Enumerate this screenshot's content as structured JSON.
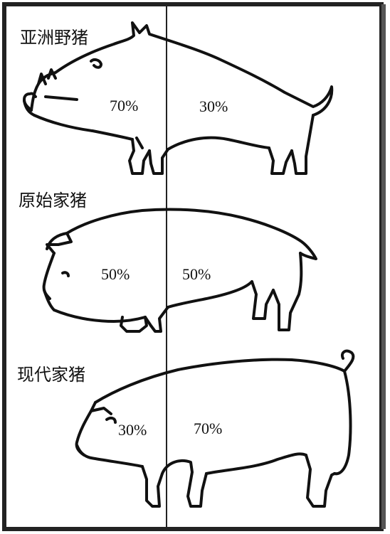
{
  "panels": [
    {
      "name": "亚洲野猪",
      "left_pct": "70%",
      "right_pct": "30%"
    },
    {
      "name": "原始家猪",
      "left_pct": "50%",
      "right_pct": "50%"
    },
    {
      "name": "现代家猪",
      "left_pct": "30%",
      "right_pct": "70%"
    }
  ],
  "proportions": [
    {
      "left": 70,
      "right": 30
    },
    {
      "left": 50,
      "right": 50
    },
    {
      "left": 30,
      "right": 70
    }
  ]
}
